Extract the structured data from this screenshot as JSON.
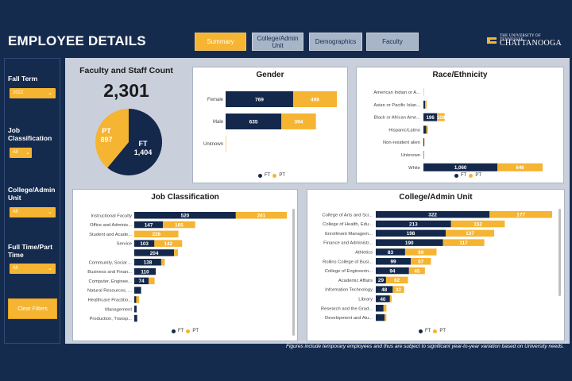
{
  "header": {
    "title": "EMPLOYEE DETAILS",
    "tabs": [
      {
        "label": "Summary"
      },
      {
        "label": "College/Admin Unit"
      },
      {
        "label": "Demographics"
      },
      {
        "label": "Faculty"
      }
    ],
    "logo": {
      "line1": "THE UNIVERSITY OF TENNESSEE",
      "line2": "CHATTANOOGA"
    }
  },
  "filters": {
    "fall_term": {
      "label": "Fall Term",
      "value": "2022"
    },
    "job_classification": {
      "label": "Job Classification",
      "value": "All"
    },
    "college_admin_unit": {
      "label": "College/Admin Unit",
      "value": "All"
    },
    "full_part_time": {
      "label": "Full Time/Part Time",
      "value": "All"
    },
    "clear_label": "Clear Filters"
  },
  "headcount": {
    "title": "Faculty and Staff Count",
    "total": "2,301",
    "pie": {
      "pt_label": "PT",
      "pt_value": "897",
      "ft_label": "FT",
      "ft_value": "1,404",
      "pt": 897,
      "ft": 1404
    }
  },
  "legend": {
    "ft": "FT",
    "pt": "PT"
  },
  "colors": {
    "ft": "#14284b",
    "pt": "#f5b431",
    "bg": "#152b4e"
  },
  "footnote": "Figures include temporary employees and thus are subject to significant year-to-year variation based on University needs.",
  "chart_data": [
    {
      "type": "bar",
      "title": "Gender",
      "orientation": "horizontal",
      "stacked": true,
      "categories": [
        "Female",
        "Male",
        "Unknown"
      ],
      "series": [
        {
          "name": "FT",
          "values": [
            769,
            635,
            0
          ]
        },
        {
          "name": "PT",
          "values": [
            498,
            394,
            5
          ]
        }
      ]
    },
    {
      "type": "bar",
      "title": "Race/Ethnicity",
      "orientation": "horizontal",
      "stacked": true,
      "categories": [
        "American Indian or A...",
        "Asian or Pacific Islan...",
        "Black or African Ame...",
        "Hispanic/Latino",
        "Non-resident alien",
        "Unknown",
        "White"
      ],
      "series": [
        {
          "name": "FT",
          "values": [
            2,
            25,
            196,
            40,
            12,
            5,
            1060
          ]
        },
        {
          "name": "PT",
          "values": [
            2,
            20,
            108,
            25,
            3,
            3,
            646
          ]
        }
      ],
      "labels": {
        "ft": [
          "",
          "",
          "196",
          "",
          "",
          "",
          "1,060"
        ],
        "pt": [
          "",
          "",
          "108",
          "",
          "",
          "",
          "646"
        ]
      }
    },
    {
      "type": "bar",
      "title": "Job Classification",
      "orientation": "horizontal",
      "stacked": true,
      "categories": [
        "Instructional Faculty",
        "Office and Adminis...",
        "Student and Acade...",
        "Service",
        "",
        "Community, Social ...",
        "Business and Finan...",
        "Computer, Enginee...",
        "Natural Resources, ...",
        "Healthcare Practitio...",
        "Management",
        "Production, Transp..."
      ],
      "series": [
        {
          "name": "FT",
          "values": [
            520,
            147,
            0,
            103,
            204,
            138,
            110,
            74,
            35,
            10,
            12,
            15
          ]
        },
        {
          "name": "PT",
          "values": [
            261,
            165,
            226,
            142,
            20,
            18,
            0,
            30,
            0,
            15,
            0,
            0
          ]
        }
      ],
      "labels": {
        "ft": [
          "520",
          "147",
          "",
          "103",
          "204",
          "138",
          "110",
          "74",
          "",
          "",
          "",
          ""
        ],
        "pt": [
          "261",
          "165",
          "226",
          "142",
          "",
          "",
          "",
          "",
          "",
          "",
          "",
          ""
        ]
      }
    },
    {
      "type": "bar",
      "title": "College/Admin Unit",
      "orientation": "horizontal",
      "stacked": true,
      "categories": [
        "College of Arts and Sci...",
        "College of Health, Edu...",
        "Enrollment Managem...",
        "Finance and Administr...",
        "Athletics",
        "Rollins College of Busi...",
        "College of Engineerin...",
        "Academic Affairs",
        "Information Technology",
        "Library",
        "Research and the Grad...",
        "Development and Alu..."
      ],
      "series": [
        {
          "name": "FT",
          "values": [
            322,
            213,
            198,
            190,
            83,
            99,
            94,
            29,
            48,
            40,
            22,
            25
          ]
        },
        {
          "name": "PT",
          "values": [
            177,
            152,
            137,
            117,
            89,
            57,
            45,
            62,
            32,
            5,
            8,
            5
          ]
        }
      ],
      "labels": {
        "ft": [
          "322",
          "213",
          "198",
          "190",
          "83",
          "99",
          "94",
          "29",
          "48",
          "40",
          "",
          ""
        ],
        "pt": [
          "177",
          "152",
          "137",
          "117",
          "89",
          "57",
          "45",
          "62",
          "32",
          "",
          "",
          ""
        ]
      }
    }
  ]
}
